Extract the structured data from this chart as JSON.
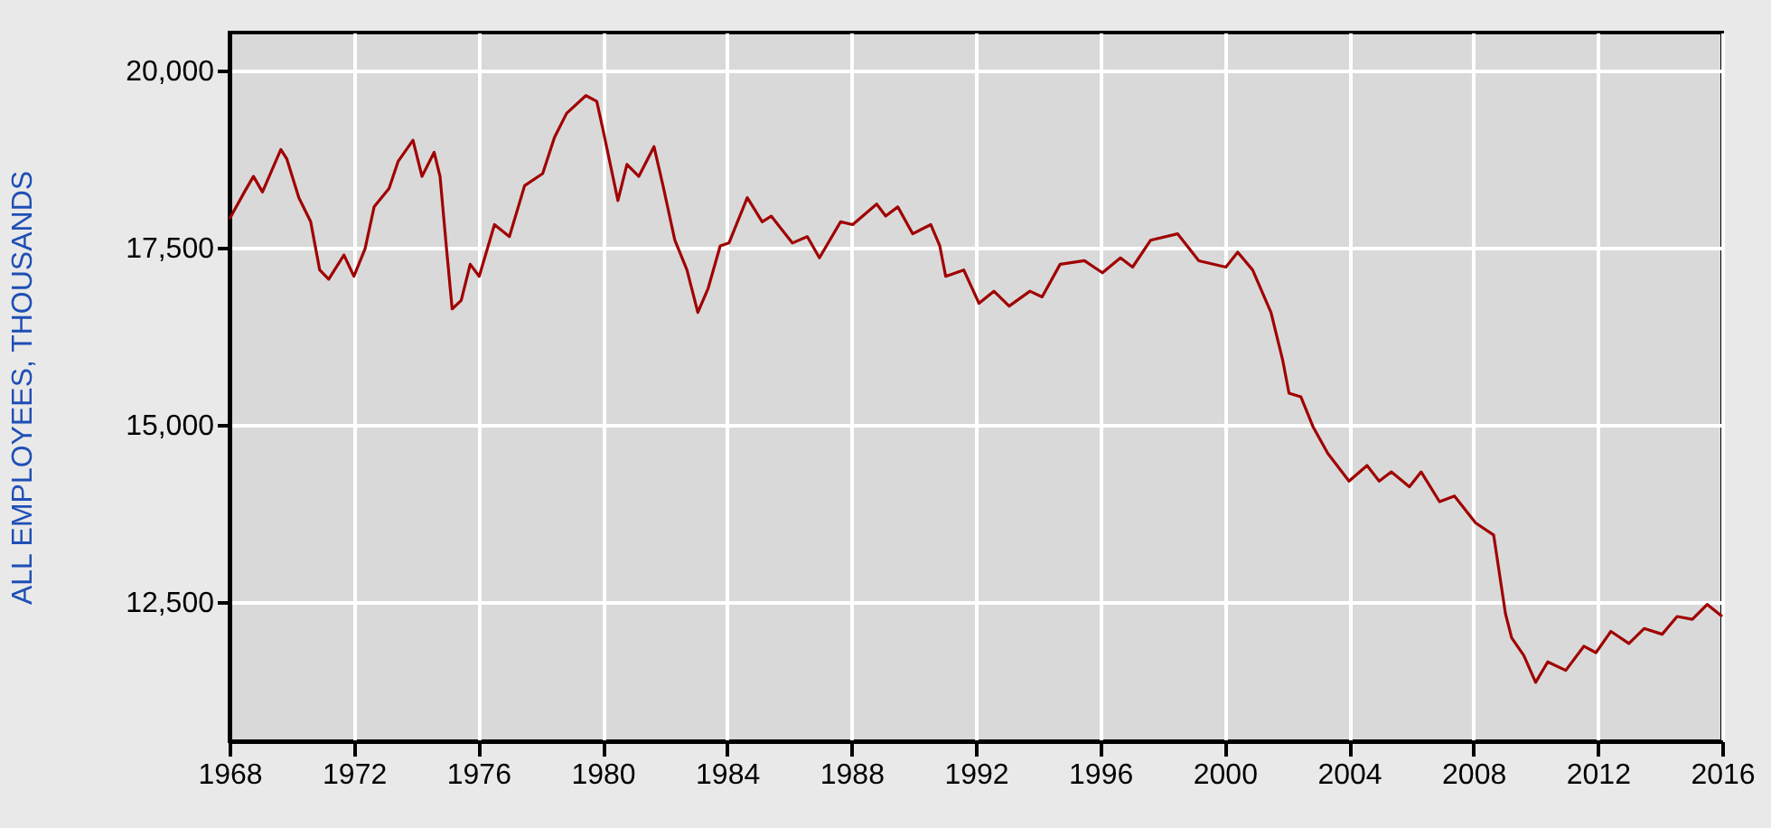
{
  "chart_data": {
    "type": "line",
    "ylabel": "ALL EMPLOYEES, THOUSANDS",
    "x": [
      1968.0,
      1968.48,
      1968.77,
      1969.06,
      1969.65,
      1969.84,
      1970.23,
      1970.61,
      1970.9,
      1971.19,
      1971.68,
      1972.0,
      1972.36,
      1972.65,
      1973.13,
      1973.42,
      1973.9,
      1974.19,
      1974.58,
      1974.77,
      1974.97,
      1975.16,
      1975.45,
      1975.74,
      1976.03,
      1976.52,
      1977.0,
      1977.49,
      1978.07,
      1978.45,
      1978.84,
      1979.46,
      1979.81,
      1980.0,
      1980.49,
      1980.78,
      1981.16,
      1981.65,
      1981.94,
      1982.32,
      1982.71,
      1983.06,
      1983.39,
      1983.78,
      1984.06,
      1984.65,
      1985.13,
      1985.42,
      1986.1,
      1986.58,
      1986.97,
      1987.65,
      1988.04,
      1988.81,
      1989.1,
      1989.49,
      1989.97,
      1990.55,
      1990.84,
      1991.03,
      1991.61,
      1992.1,
      1992.58,
      1993.07,
      1993.74,
      1994.13,
      1994.71,
      1995.49,
      1996.07,
      1996.65,
      1997.04,
      1997.62,
      1998.49,
      1999.17,
      2000.04,
      2000.42,
      2000.9,
      2001.49,
      2001.87,
      2002.07,
      2002.45,
      2002.84,
      2003.32,
      2004.0,
      2004.58,
      2004.97,
      2005.36,
      2005.94,
      2006.32,
      2006.91,
      2007.39,
      2008.07,
      2008.65,
      2009.03,
      2009.23,
      2009.62,
      2010.0,
      2010.39,
      2010.97,
      2011.55,
      2011.94,
      2012.42,
      2013.0,
      2013.49,
      2014.07,
      2014.55,
      2015.04,
      2015.52,
      2016.0
    ],
    "series": [
      {
        "color": "#a00000",
        "values": [
          17900,
          18280,
          18500,
          18280,
          18880,
          18750,
          18200,
          17860,
          17180,
          17050,
          17390,
          17090,
          17480,
          18070,
          18330,
          18710,
          19010,
          18500,
          18840,
          18500,
          17520,
          16630,
          16750,
          17260,
          17090,
          17820,
          17650,
          18370,
          18540,
          19050,
          19390,
          19640,
          19560,
          19180,
          18160,
          18670,
          18500,
          18920,
          18370,
          17600,
          17180,
          16580,
          16920,
          17520,
          17560,
          18200,
          17860,
          17940,
          17560,
          17650,
          17350,
          17860,
          17820,
          18110,
          17940,
          18070,
          17690,
          17820,
          17520,
          17090,
          17180,
          16710,
          16880,
          16670,
          16880,
          16800,
          17260,
          17310,
          17140,
          17350,
          17220,
          17600,
          17690,
          17310,
          17220,
          17430,
          17180,
          16580,
          15900,
          15440,
          15390,
          14970,
          14590,
          14200,
          14420,
          14200,
          14330,
          14120,
          14330,
          13910,
          13990,
          13610,
          13440,
          12330,
          11990,
          11740,
          11360,
          11650,
          11530,
          11870,
          11780,
          12080,
          11910,
          12120,
          12040,
          12290,
          12250,
          12460,
          12290
        ]
      }
    ],
    "xlim": [
      1968,
      2016
    ],
    "xticks": [
      1968,
      1972,
      1976,
      1980,
      1984,
      1988,
      1992,
      1996,
      2000,
      2004,
      2008,
      2012,
      2016
    ],
    "ylim": [
      10530,
      20530
    ],
    "yticks": [
      {
        "value": 12500,
        "label": "12,500"
      },
      {
        "value": 15000,
        "label": "15,000"
      },
      {
        "value": 17500,
        "label": "17,500"
      },
      {
        "value": 20000,
        "label": "20,000"
      }
    ],
    "grid": true,
    "line_style": "solid",
    "marker": "none"
  }
}
